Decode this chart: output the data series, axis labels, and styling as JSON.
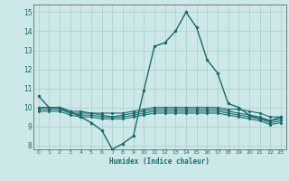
{
  "title": "",
  "xlabel": "Humidex (Indice chaleur)",
  "background_color": "#cce8e8",
  "grid_color": "#aacccc",
  "line_color": "#1a6b6b",
  "xlim": [
    -0.5,
    23.5
  ],
  "ylim": [
    7.8,
    15.4
  ],
  "xticks": [
    0,
    1,
    2,
    3,
    4,
    5,
    6,
    7,
    8,
    9,
    10,
    11,
    12,
    13,
    14,
    15,
    16,
    17,
    18,
    19,
    20,
    21,
    22,
    23
  ],
  "yticks": [
    8,
    9,
    10,
    11,
    12,
    13,
    14,
    15
  ],
  "series": [
    [
      10.6,
      10.0,
      10.0,
      9.8,
      9.5,
      9.2,
      8.8,
      7.8,
      8.1,
      8.5,
      10.9,
      13.2,
      13.4,
      14.0,
      15.0,
      14.2,
      12.5,
      11.8,
      10.2,
      10.0,
      9.6,
      9.4,
      9.3,
      9.5
    ],
    [
      10.0,
      10.0,
      10.0,
      9.8,
      9.8,
      9.7,
      9.7,
      9.7,
      9.7,
      9.8,
      9.9,
      10.0,
      10.0,
      10.0,
      10.0,
      10.0,
      10.0,
      10.0,
      9.9,
      9.9,
      9.8,
      9.7,
      9.5,
      9.5
    ],
    [
      10.0,
      10.0,
      10.0,
      9.7,
      9.7,
      9.7,
      9.6,
      9.5,
      9.6,
      9.7,
      9.8,
      9.9,
      9.9,
      9.9,
      9.9,
      9.9,
      9.9,
      9.9,
      9.8,
      9.7,
      9.6,
      9.5,
      9.3,
      9.4
    ],
    [
      9.9,
      9.9,
      9.9,
      9.7,
      9.6,
      9.6,
      9.5,
      9.5,
      9.5,
      9.6,
      9.7,
      9.8,
      9.8,
      9.8,
      9.8,
      9.8,
      9.8,
      9.8,
      9.7,
      9.6,
      9.5,
      9.4,
      9.2,
      9.3
    ],
    [
      9.8,
      9.8,
      9.8,
      9.6,
      9.5,
      9.5,
      9.4,
      9.4,
      9.4,
      9.5,
      9.6,
      9.7,
      9.7,
      9.7,
      9.7,
      9.7,
      9.7,
      9.7,
      9.6,
      9.5,
      9.4,
      9.3,
      9.1,
      9.2
    ]
  ]
}
